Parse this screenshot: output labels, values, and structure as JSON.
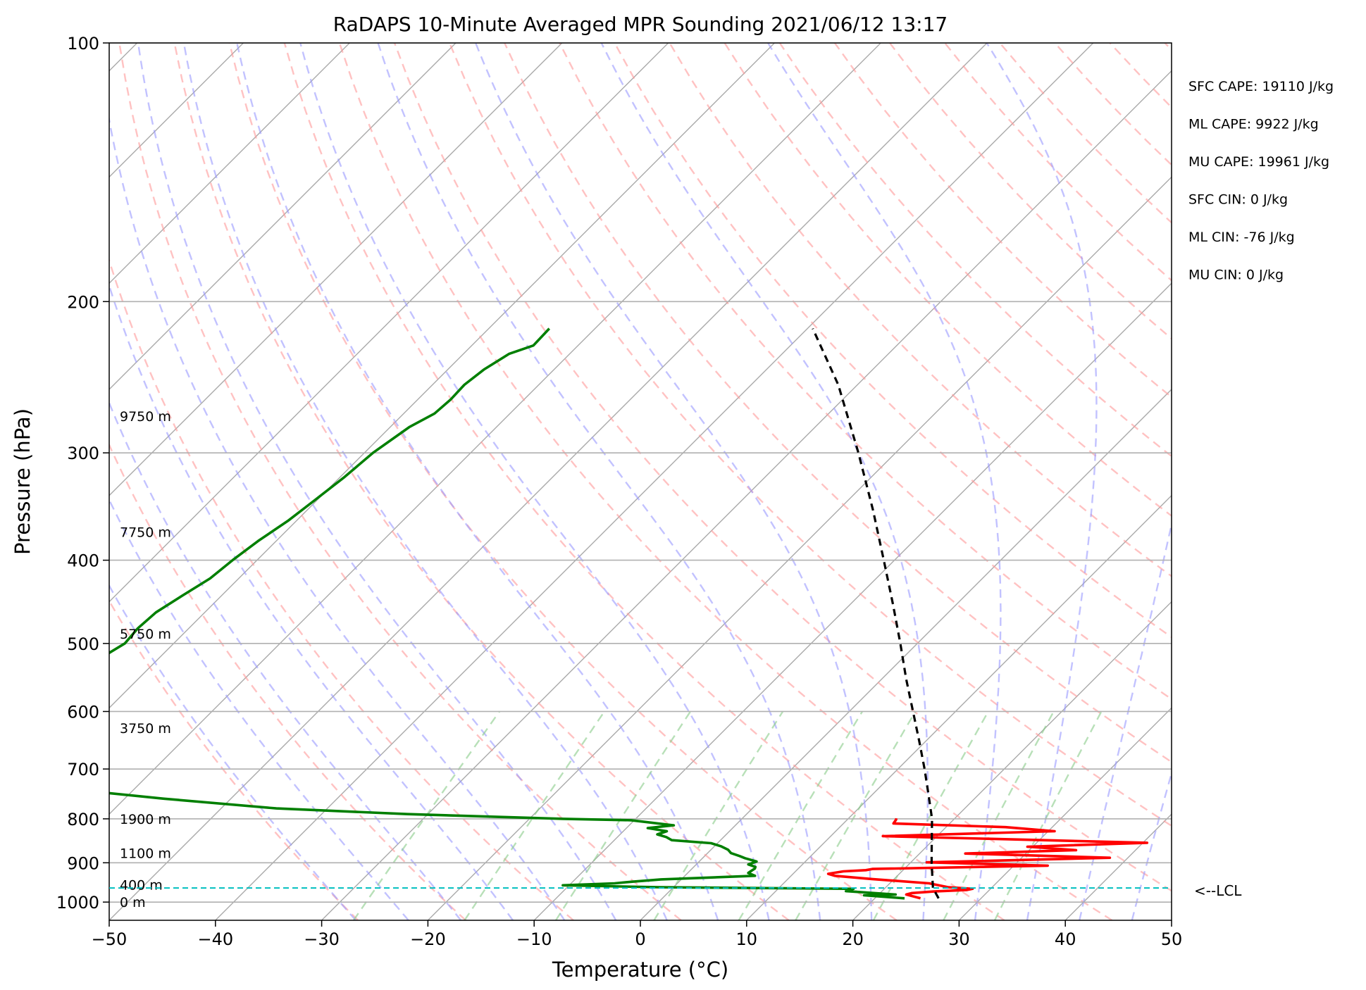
{
  "chart_data": {
    "type": "line",
    "title": "RaDAPS 10-Minute Averaged MPR Sounding 2021/06/12 13:17",
    "xlabel": "Temperature (°C)",
    "ylabel": "Pressure (hPa)",
    "xlim": [
      -50,
      50
    ],
    "ylim": [
      1050,
      100
    ],
    "y_scale": "log",
    "x_ticks": [
      -50,
      -40,
      -30,
      -20,
      -10,
      0,
      10,
      20,
      30,
      40,
      50
    ],
    "x_tick_labels": [
      "−50",
      "−40",
      "−30",
      "−20",
      "−10",
      "0",
      "10",
      "20",
      "30",
      "40",
      "50"
    ],
    "y_ticks": [
      1000,
      900,
      800,
      700,
      600,
      500,
      400,
      300,
      200,
      100
    ],
    "grid": true,
    "skew": 45,
    "stats": [
      "SFC CAPE: 19110 J/kg",
      "ML CAPE: 9922 J/kg",
      "MU CAPE: 19961 J/kg",
      "SFC CIN: 0 J/kg",
      "ML CIN: -76 J/kg",
      "MU CIN: 0 J/kg"
    ],
    "height_labels": [
      {
        "text": "0 m",
        "p": 1000
      },
      {
        "text": "400 m",
        "p": 955
      },
      {
        "text": "1100 m",
        "p": 877
      },
      {
        "text": "1900 m",
        "p": 800
      },
      {
        "text": "3750 m",
        "p": 627
      },
      {
        "text": "5750 m",
        "p": 487
      },
      {
        "text": "7750 m",
        "p": 371
      },
      {
        "text": "9750 m",
        "p": 272
      }
    ],
    "lcl": {
      "p": 963,
      "label": "<--LCL"
    },
    "series": [
      {
        "kind": "temperature",
        "color": "#ff0000",
        "points": [
          [
            24.3,
            990
          ],
          [
            22.6,
            980
          ],
          [
            23.0,
            976
          ],
          [
            24.9,
            972
          ],
          [
            27.9,
            968
          ],
          [
            28.3,
            965
          ],
          [
            25.9,
            961
          ],
          [
            23.7,
            951
          ],
          [
            17.9,
            940
          ],
          [
            14.1,
            932
          ],
          [
            13.3,
            927
          ],
          [
            14.5,
            921
          ],
          [
            16.5,
            918
          ],
          [
            17.0,
            915
          ],
          [
            33.2,
            907
          ],
          [
            21.5,
            899
          ],
          [
            38.3,
            888
          ],
          [
            24.3,
            878
          ],
          [
            34.4,
            870
          ],
          [
            29.5,
            862
          ],
          [
            40.4,
            853
          ],
          [
            14.9,
            838
          ],
          [
            30.6,
            827
          ],
          [
            25.6,
            818
          ],
          [
            14.7,
            810
          ],
          [
            14.6,
            802
          ],
          [
            14.5,
            799
          ]
        ]
      },
      {
        "kind": "dewpoint",
        "color": "#007f00",
        "points": [
          [
            22.8,
            990
          ],
          [
            18.7,
            982
          ],
          [
            21.6,
            980
          ],
          [
            16.6,
            971
          ],
          [
            17.1,
            965
          ],
          [
            -1.2,
            961
          ],
          [
            -10.6,
            956
          ],
          [
            -5.9,
            951
          ],
          [
            -4.5,
            947
          ],
          [
            -1.9,
            941
          ],
          [
            6.6,
            932
          ],
          [
            5.7,
            925
          ],
          [
            5.8,
            919
          ],
          [
            5.9,
            914
          ],
          [
            5.8,
            910
          ],
          [
            4.9,
            904
          ],
          [
            5.4,
            897
          ],
          [
            4.0,
            889
          ],
          [
            3.3,
            884
          ],
          [
            2.2,
            877
          ],
          [
            1.6,
            869
          ],
          [
            0.6,
            861
          ],
          [
            -0.6,
            854
          ],
          [
            -4.6,
            847
          ],
          [
            -5.4,
            840
          ],
          [
            -6.5,
            834
          ],
          [
            -5.9,
            827
          ],
          [
            -8.0,
            820
          ],
          [
            -5.8,
            814
          ],
          [
            -10.3,
            803
          ],
          [
            -16.8,
            800
          ],
          [
            -31.9,
            790
          ],
          [
            -44.8,
            778
          ],
          [
            -56.3,
            758
          ],
          [
            -69.0,
            733
          ],
          [
            -77.4,
            700
          ],
          [
            -78.7,
            680
          ],
          [
            -79.0,
            660
          ],
          [
            -78.9,
            640
          ],
          [
            -79.1,
            620
          ],
          [
            -78.0,
            600
          ],
          [
            -76.0,
            580
          ],
          [
            -76.5,
            560
          ],
          [
            -76.5,
            540
          ],
          [
            -75.5,
            520
          ],
          [
            -74.6,
            500
          ],
          [
            -74.8,
            480
          ],
          [
            -74.6,
            460
          ],
          [
            -73.7,
            440
          ],
          [
            -72.7,
            420
          ],
          [
            -72.3,
            400
          ],
          [
            -71.7,
            380
          ],
          [
            -70.8,
            360
          ],
          [
            -70.2,
            340
          ],
          [
            -69.6,
            320
          ],
          [
            -69.2,
            300
          ],
          [
            -68.2,
            280
          ],
          [
            -67.1,
            270
          ],
          [
            -66.9,
            260
          ],
          [
            -67.0,
            250
          ],
          [
            -66.6,
            240
          ],
          [
            -65.7,
            230
          ],
          [
            -64.2,
            225
          ],
          [
            -64.3,
            215
          ]
        ]
      },
      {
        "kind": "parcel",
        "color": "#000000",
        "dashed": true,
        "points": [
          [
            26.0,
            990
          ],
          [
            24.5,
            963
          ],
          [
            22.0,
            900
          ],
          [
            20.0,
            850
          ],
          [
            17.9,
            800
          ],
          [
            15.3,
            750
          ],
          [
            12.5,
            700
          ],
          [
            9.4,
            650
          ],
          [
            6.0,
            600
          ],
          [
            2.3,
            550
          ],
          [
            -1.6,
            500
          ],
          [
            -6.0,
            450
          ],
          [
            -11.0,
            400
          ],
          [
            -16.7,
            350
          ],
          [
            -23.5,
            300
          ],
          [
            -31.8,
            250
          ],
          [
            -39.5,
            215
          ]
        ]
      }
    ]
  }
}
